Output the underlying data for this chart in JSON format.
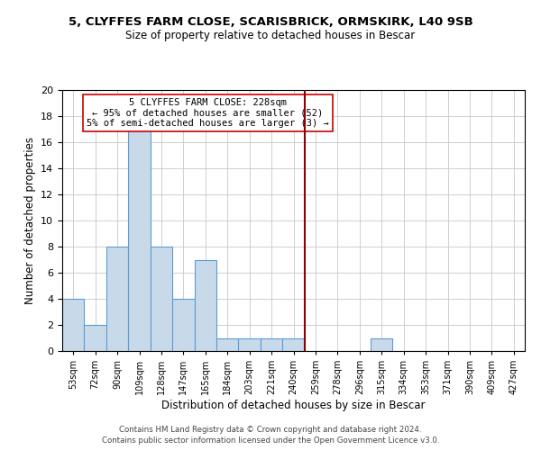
{
  "title": "5, CLYFFES FARM CLOSE, SCARISBRICK, ORMSKIRK, L40 9SB",
  "subtitle": "Size of property relative to detached houses in Bescar",
  "xlabel": "Distribution of detached houses by size in Bescar",
  "ylabel": "Number of detached properties",
  "bin_labels": [
    "53sqm",
    "72sqm",
    "90sqm",
    "109sqm",
    "128sqm",
    "147sqm",
    "165sqm",
    "184sqm",
    "203sqm",
    "221sqm",
    "240sqm",
    "259sqm",
    "278sqm",
    "296sqm",
    "315sqm",
    "334sqm",
    "353sqm",
    "371sqm",
    "390sqm",
    "409sqm",
    "427sqm"
  ],
  "bar_heights": [
    4,
    2,
    8,
    17,
    8,
    4,
    7,
    1,
    1,
    1,
    1,
    0,
    0,
    0,
    1,
    0,
    0,
    0,
    0,
    0,
    0
  ],
  "bar_color": "#c8daea",
  "bar_edge_color": "#5b9bd5",
  "vline_x": 10.5,
  "vline_color": "#8b0000",
  "annotation_title": "5 CLYFFES FARM CLOSE: 228sqm",
  "annotation_line1": "← 95% of detached houses are smaller (52)",
  "annotation_line2": "5% of semi-detached houses are larger (3) →",
  "annotation_box_edge": "#cc0000",
  "ylim": [
    0,
    20
  ],
  "yticks": [
    0,
    2,
    4,
    6,
    8,
    10,
    12,
    14,
    16,
    18,
    20
  ],
  "footer1": "Contains HM Land Registry data © Crown copyright and database right 2024.",
  "footer2": "Contains public sector information licensed under the Open Government Licence v3.0.",
  "background_color": "#ffffff",
  "grid_color": "#c8c8c8"
}
